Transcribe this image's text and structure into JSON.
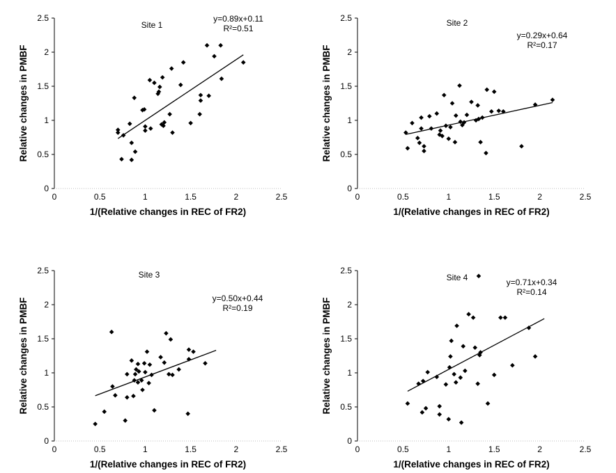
{
  "chart_data": [
    {
      "type": "scatter",
      "title": "Site 1",
      "xlabel": "1/(Relative changes in REC of FR2)",
      "ylabel": "Relative changes in PMBF",
      "xlim": [
        0,
        2.5
      ],
      "ylim": [
        0,
        2.5
      ],
      "xticks": [
        "0",
        "0.5",
        "1",
        "1.5",
        "2",
        "2.5"
      ],
      "yticks": [
        "0",
        "0.5",
        "1",
        "1.5",
        "2",
        "2.5"
      ],
      "equation": "y=0.89x+0.11",
      "r2": "R²=0.51",
      "fit": {
        "slope": 0.89,
        "intercept": 0.11,
        "x_range": [
          0.7,
          2.08
        ]
      },
      "points": [
        [
          0.7,
          0.86
        ],
        [
          0.7,
          0.82
        ],
        [
          0.74,
          0.43
        ],
        [
          0.76,
          0.78
        ],
        [
          0.83,
          0.95
        ],
        [
          0.85,
          0.42
        ],
        [
          0.85,
          0.67
        ],
        [
          0.88,
          1.33
        ],
        [
          0.89,
          0.54
        ],
        [
          0.97,
          1.15
        ],
        [
          0.99,
          1.16
        ],
        [
          1.0,
          0.91
        ],
        [
          1.0,
          0.85
        ],
        [
          1.05,
          1.59
        ],
        [
          1.06,
          0.88
        ],
        [
          1.1,
          1.55
        ],
        [
          1.14,
          1.39
        ],
        [
          1.15,
          1.42
        ],
        [
          1.16,
          1.49
        ],
        [
          1.18,
          0.94
        ],
        [
          1.19,
          1.63
        ],
        [
          1.2,
          0.92
        ],
        [
          1.21,
          0.97
        ],
        [
          1.27,
          1.09
        ],
        [
          1.29,
          1.76
        ],
        [
          1.3,
          0.82
        ],
        [
          1.39,
          1.52
        ],
        [
          1.42,
          1.85
        ],
        [
          1.5,
          0.96
        ],
        [
          1.6,
          1.09
        ],
        [
          1.61,
          1.37
        ],
        [
          1.61,
          1.29
        ],
        [
          1.68,
          2.1
        ],
        [
          1.7,
          1.36
        ],
        [
          1.76,
          1.94
        ],
        [
          1.83,
          2.1
        ],
        [
          1.84,
          1.61
        ],
        [
          2.08,
          1.85
        ]
      ]
    },
    {
      "type": "scatter",
      "title": "Site 2",
      "xlabel": "1/(Relative changes in REC of FR2)",
      "ylabel": "Relative changes in PMBF",
      "xlim": [
        0,
        2.5
      ],
      "ylim": [
        0,
        2.5
      ],
      "xticks": [
        "0",
        "0.5",
        "1",
        "1.5",
        "2",
        "2.5"
      ],
      "yticks": [
        "0",
        "0.5",
        "1",
        "1.5",
        "2",
        "2.5"
      ],
      "equation": "y=0.29x+0.64",
      "r2": "R²=0.17",
      "fit": {
        "slope": 0.29,
        "intercept": 0.64,
        "x_range": [
          0.53,
          2.14
        ]
      },
      "points": [
        [
          0.53,
          0.82
        ],
        [
          0.55,
          0.59
        ],
        [
          0.6,
          0.96
        ],
        [
          0.66,
          0.74
        ],
        [
          0.68,
          0.67
        ],
        [
          0.7,
          0.88
        ],
        [
          0.7,
          1.04
        ],
        [
          0.73,
          0.55
        ],
        [
          0.73,
          0.62
        ],
        [
          0.79,
          1.06
        ],
        [
          0.81,
          0.88
        ],
        [
          0.87,
          1.1
        ],
        [
          0.9,
          0.79
        ],
        [
          0.91,
          0.85
        ],
        [
          0.93,
          0.77
        ],
        [
          0.95,
          1.37
        ],
        [
          0.97,
          0.92
        ],
        [
          1.0,
          0.73
        ],
        [
          1.02,
          0.9
        ],
        [
          1.04,
          1.25
        ],
        [
          1.07,
          0.68
        ],
        [
          1.08,
          1.07
        ],
        [
          1.12,
          1.51
        ],
        [
          1.13,
          0.98
        ],
        [
          1.15,
          0.93
        ],
        [
          1.17,
          0.97
        ],
        [
          1.2,
          1.08
        ],
        [
          1.25,
          1.27
        ],
        [
          1.3,
          1.0
        ],
        [
          1.32,
          1.22
        ],
        [
          1.33,
          1.02
        ],
        [
          1.35,
          0.68
        ],
        [
          1.37,
          1.04
        ],
        [
          1.41,
          0.52
        ],
        [
          1.42,
          1.45
        ],
        [
          1.47,
          1.13
        ],
        [
          1.5,
          1.42
        ],
        [
          1.55,
          1.14
        ],
        [
          1.6,
          1.13
        ],
        [
          1.8,
          0.62
        ],
        [
          1.95,
          1.23
        ],
        [
          2.14,
          1.3
        ]
      ]
    },
    {
      "type": "scatter",
      "title": "Site 3",
      "xlabel": "1/(Relative changes in REC of FR2)",
      "ylabel": "Relative changes in PMBF",
      "xlim": [
        0,
        2.5
      ],
      "ylim": [
        0,
        2.5
      ],
      "xticks": [
        "0",
        "0.5",
        "1",
        "1.5",
        "2",
        "2.5"
      ],
      "yticks": [
        "0",
        "0.5",
        "1",
        "1.5",
        "2",
        "2.5"
      ],
      "equation": "y=0.50x+0.44",
      "r2": "R²=0.19",
      "fit": {
        "slope": 0.5,
        "intercept": 0.44,
        "x_range": [
          0.45,
          1.78
        ]
      },
      "points": [
        [
          0.45,
          0.25
        ],
        [
          0.55,
          0.43
        ],
        [
          0.63,
          1.6
        ],
        [
          0.64,
          0.8
        ],
        [
          0.67,
          0.67
        ],
        [
          0.78,
          0.3
        ],
        [
          0.8,
          0.64
        ],
        [
          0.8,
          0.98
        ],
        [
          0.85,
          1.18
        ],
        [
          0.87,
          0.66
        ],
        [
          0.88,
          0.89
        ],
        [
          0.89,
          0.98
        ],
        [
          0.9,
          1.05
        ],
        [
          0.92,
          1.13
        ],
        [
          0.92,
          0.86
        ],
        [
          0.93,
          1.02
        ],
        [
          0.96,
          0.89
        ],
        [
          0.97,
          0.75
        ],
        [
          0.99,
          1.14
        ],
        [
          1.0,
          1.01
        ],
        [
          1.02,
          1.31
        ],
        [
          1.04,
          0.85
        ],
        [
          1.05,
          1.12
        ],
        [
          1.07,
          0.97
        ],
        [
          1.1,
          0.45
        ],
        [
          1.17,
          1.23
        ],
        [
          1.21,
          1.15
        ],
        [
          1.23,
          1.58
        ],
        [
          1.26,
          0.98
        ],
        [
          1.28,
          1.49
        ],
        [
          1.3,
          0.97
        ],
        [
          1.37,
          1.05
        ],
        [
          1.47,
          0.4
        ],
        [
          1.48,
          1.34
        ],
        [
          1.48,
          1.2
        ],
        [
          1.53,
          1.31
        ],
        [
          1.66,
          1.14
        ]
      ]
    },
    {
      "type": "scatter",
      "title": "Site 4",
      "xlabel": "1/(Relative changes in REC of FR2)",
      "ylabel": "Relative changes in PMBF",
      "xlim": [
        0,
        2.5
      ],
      "ylim": [
        0,
        2.5
      ],
      "xticks": [
        "0",
        "0.5",
        "1",
        "1.5",
        "2",
        "2.5"
      ],
      "yticks": [
        "0",
        "0.5",
        "1",
        "1.5",
        "2",
        "2.5"
      ],
      "equation": "y=0.71x+0.34",
      "r2": "R²=0.14",
      "fit": {
        "slope": 0.71,
        "intercept": 0.34,
        "x_range": [
          0.55,
          2.05
        ]
      },
      "points": [
        [
          0.55,
          0.55
        ],
        [
          0.67,
          0.84
        ],
        [
          0.71,
          0.42
        ],
        [
          0.72,
          0.88
        ],
        [
          0.75,
          0.48
        ],
        [
          0.77,
          1.01
        ],
        [
          0.87,
          0.94
        ],
        [
          0.9,
          0.51
        ],
        [
          0.9,
          0.39
        ],
        [
          0.97,
          0.83
        ],
        [
          1.0,
          0.32
        ],
        [
          1.01,
          1.08
        ],
        [
          1.02,
          1.24
        ],
        [
          1.03,
          1.47
        ],
        [
          1.06,
          0.98
        ],
        [
          1.08,
          0.86
        ],
        [
          1.09,
          1.69
        ],
        [
          1.13,
          0.93
        ],
        [
          1.14,
          0.27
        ],
        [
          1.16,
          1.39
        ],
        [
          1.18,
          1.03
        ],
        [
          1.22,
          1.86
        ],
        [
          1.27,
          1.81
        ],
        [
          1.29,
          1.37
        ],
        [
          1.32,
          0.84
        ],
        [
          1.33,
          2.42
        ],
        [
          1.34,
          1.26
        ],
        [
          1.35,
          1.3
        ],
        [
          1.43,
          0.55
        ],
        [
          1.5,
          0.97
        ],
        [
          1.57,
          1.81
        ],
        [
          1.62,
          1.81
        ],
        [
          1.7,
          1.11
        ],
        [
          1.88,
          1.66
        ],
        [
          1.95,
          1.24
        ]
      ]
    }
  ]
}
